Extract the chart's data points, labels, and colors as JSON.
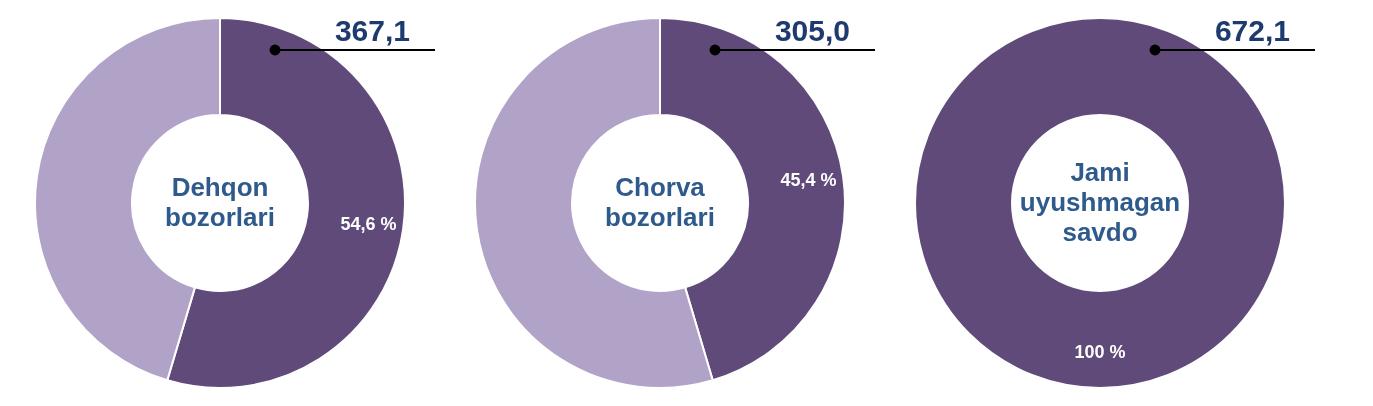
{
  "chart_data": [
    {
      "type": "donut",
      "title": "Dehqon bozorlari",
      "categories": [
        null,
        null
      ],
      "values": [
        54.6,
        45.4
      ],
      "colors": [
        "#5f4a7a",
        "#b1a2c8"
      ],
      "value_labels": [
        "54,6 %",
        null
      ],
      "annotations": [
        "367,1"
      ]
    },
    {
      "type": "donut",
      "title": "Chorva bozorlari",
      "categories": [
        null,
        null
      ],
      "values": [
        45.4,
        54.6
      ],
      "colors": [
        "#5f4a7a",
        "#b1a2c8"
      ],
      "value_labels": [
        "45,4 %",
        null
      ],
      "annotations": [
        "305,0"
      ]
    },
    {
      "type": "donut",
      "title": "Jami uyushmagan savdo",
      "categories": [
        null
      ],
      "values": [
        100
      ],
      "colors": [
        "#5f4a7a"
      ],
      "value_labels": [
        "100 %"
      ],
      "annotations": [
        "672,1"
      ]
    }
  ]
}
